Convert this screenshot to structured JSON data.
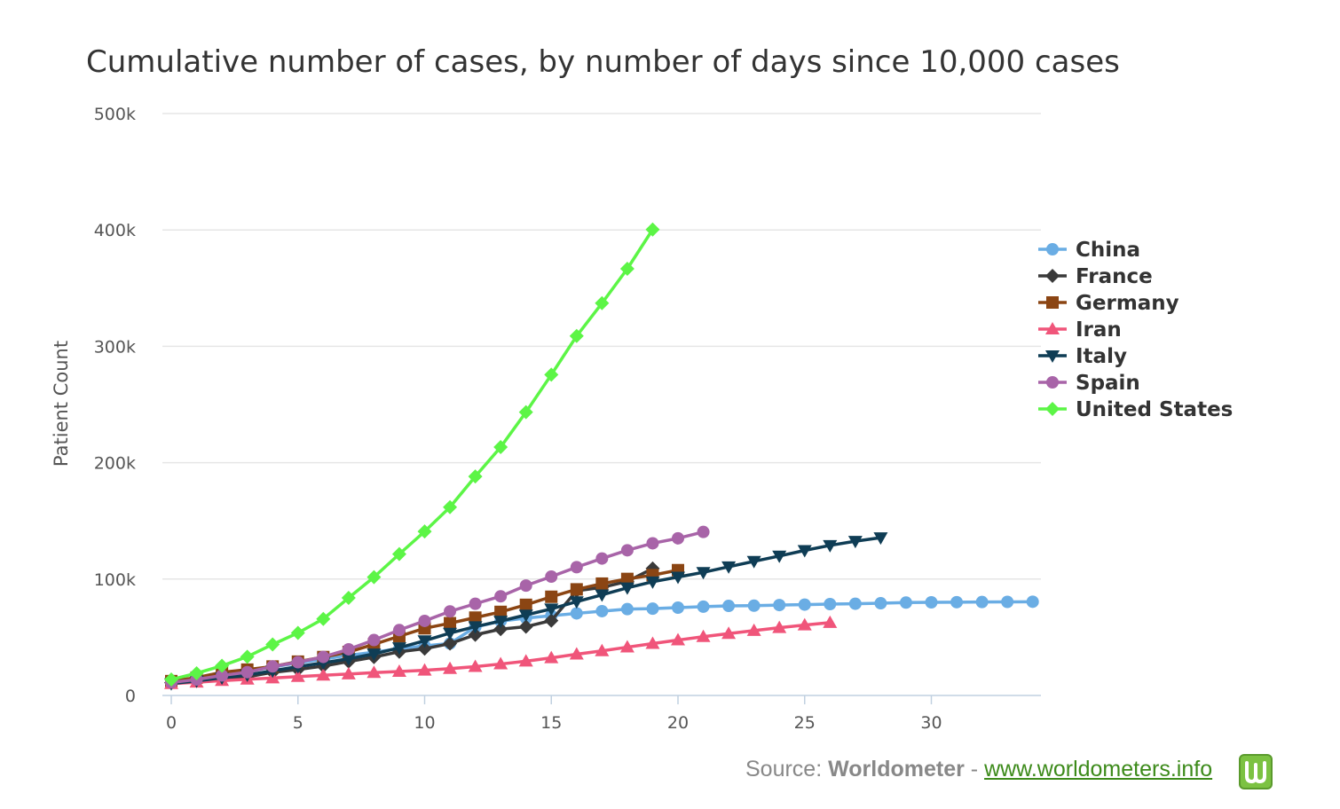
{
  "chart_data": {
    "type": "line",
    "title": "Cumulative number of cases, by number of days since 10,000 cases",
    "xlabel": "",
    "ylabel": "Patient Count",
    "xlim": [
      -0.3,
      34.3
    ],
    "ylim": [
      0,
      500000
    ],
    "x_ticks": [
      0,
      5,
      10,
      15,
      20,
      25,
      30
    ],
    "y_ticks": [
      0,
      100000,
      200000,
      300000,
      400000,
      500000
    ],
    "y_tick_labels": [
      "0",
      "100k",
      "200k",
      "300k",
      "400k",
      "500k"
    ],
    "legend_position": "right",
    "series": [
      {
        "name": "China",
        "color": "#6aade4",
        "marker": "circle",
        "values": [
          11791,
          14380,
          17205,
          20438,
          24324,
          28018,
          31161,
          34546,
          37198,
          40171,
          42638,
          44653,
          58761,
          63851,
          66492,
          68500,
          70548,
          72436,
          74185,
          74576,
          75465,
          76288,
          76936,
          77150,
          77658,
          78064,
          78497,
          78824,
          79251,
          79824,
          80026,
          80151,
          80270,
          80409,
          80552
        ]
      },
      {
        "name": "France",
        "color": "#3a3a3a",
        "marker": "diamond",
        "values": [
          10995,
          12612,
          14459,
          16018,
          19856,
          22304,
          25233,
          29155,
          32964,
          37575,
          40174,
          44550,
          52128,
          56989,
          59105,
          64338,
          89953,
          92839,
          98010,
          109069
        ]
      },
      {
        "name": "Germany",
        "color": "#8b4513",
        "marker": "square",
        "values": [
          12327,
          15320,
          19848,
          22213,
          24873,
          29056,
          32986,
          37323,
          43938,
          50871,
          57695,
          62095,
          66885,
          71808,
          77872,
          84794,
          91159,
          96092,
          100123,
          103375,
          107663
        ]
      },
      {
        "name": "Iran",
        "color": "#f0557a",
        "marker": "triangle",
        "values": [
          10075,
          11364,
          12729,
          13938,
          14991,
          16169,
          17361,
          18407,
          19644,
          20610,
          21638,
          23049,
          24811,
          27017,
          29406,
          32332,
          35408,
          38309,
          41495,
          44605,
          47593,
          50468,
          53183,
          55743,
          58226,
          60500,
          62589
        ]
      },
      {
        "name": "Italy",
        "color": "#0f3d55",
        "marker": "triangle-down",
        "values": [
          10149,
          12462,
          15113,
          17660,
          21157,
          24747,
          27980,
          31506,
          35713,
          41035,
          47021,
          53578,
          59138,
          63927,
          69176,
          74386,
          80589,
          86498,
          92472,
          97689,
          101739,
          105792,
          110574,
          115242,
          119827,
          124632,
          128948,
          132547,
          135586
        ]
      },
      {
        "name": "Spain",
        "color": "#a864a8",
        "marker": "circle",
        "values": [
          11178,
          13716,
          17147,
          19980,
          24926,
          28572,
          33089,
          39673,
          47610,
          56188,
          64059,
          72248,
          78797,
          85195,
          94417,
          102136,
          110238,
          117710,
          124736,
          130759,
          135032,
          140510
        ]
      },
      {
        "name": "United States",
        "color": "#5cf546",
        "marker": "diamond",
        "values": [
          13677,
          19100,
          25489,
          33276,
          43847,
          53740,
          65778,
          83836,
          101657,
          121478,
          140886,
          161807,
          188172,
          213372,
          243453,
          275586,
          308850,
          337072,
          366614,
          400335
        ]
      }
    ]
  },
  "source": {
    "prefix": "Source: ",
    "name": "Worldometer",
    "separator": " - ",
    "link_text": "www.worldometers.info"
  }
}
